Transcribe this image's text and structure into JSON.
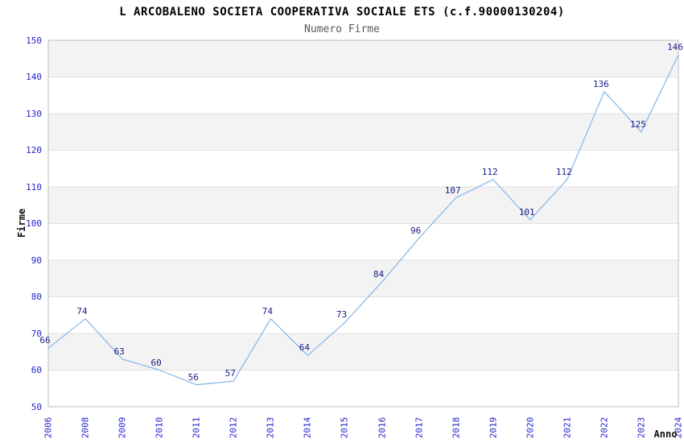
{
  "chart_data": {
    "type": "line",
    "title": "L ARCOBALENO SOCIETA COOPERATIVA SOCIALE ETS (c.f.90000130204)",
    "subtitle": "Numero Firme",
    "xlabel": "Anno",
    "ylabel": "Firme",
    "categories": [
      "2006",
      "2008",
      "2009",
      "2010",
      "2011",
      "2012",
      "2013",
      "2014",
      "2015",
      "2016",
      "2017",
      "2018",
      "2019",
      "2020",
      "2021",
      "2022",
      "2023",
      "2024"
    ],
    "values": [
      66,
      74,
      63,
      60,
      56,
      57,
      74,
      64,
      73,
      84,
      96,
      107,
      112,
      101,
      112,
      136,
      125,
      146
    ],
    "ylim": [
      50,
      150
    ],
    "yticks": [
      50,
      60,
      70,
      80,
      90,
      100,
      110,
      120,
      130,
      140,
      150
    ],
    "grid": "horizontal-bands",
    "legend": "none",
    "show_value_labels": true,
    "colors": {
      "line": "#85b5e8",
      "tick_label": "#2424cc",
      "value_label": "#1b1b86",
      "band_fill": "#f3f3f3",
      "gridline": "#e2e2e2",
      "plot_border": "#bdbdbd",
      "title": "#000000",
      "subtitle": "#595959",
      "axis_title": "#111111",
      "background": "#ffffff"
    }
  }
}
